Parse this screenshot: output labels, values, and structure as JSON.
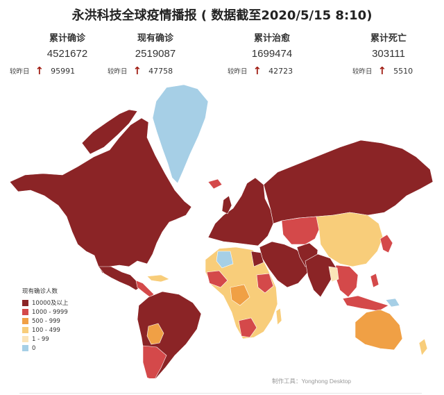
{
  "title": "永洪科技全球疫情播报 ( 数据截至2020/5/15 8:10)",
  "stats": [
    {
      "label": "累计确诊",
      "value": "4521672",
      "compare": "较昨日",
      "delta": "95991"
    },
    {
      "label": "现有确诊",
      "value": "2519087",
      "compare": "较昨日",
      "delta": "47758"
    },
    {
      "label": "累计治愈",
      "value": "1699474",
      "compare": "较昨日",
      "delta": "42723"
    },
    {
      "label": "累计死亡",
      "value": "303111",
      "compare": "较昨日",
      "delta": "5510"
    }
  ],
  "icons": {
    "increase": "up-arrow-icon"
  },
  "legend": {
    "title": "现有确诊人数",
    "items": [
      {
        "label": "10000及以上",
        "color": "#8b2426"
      },
      {
        "label": "1000 - 9999",
        "color": "#d4494a"
      },
      {
        "label": "500 - 999",
        "color": "#f0a045"
      },
      {
        "label": "100 - 499",
        "color": "#f8cd7a"
      },
      {
        "label": "1 - 99",
        "color": "#fbe4b8"
      },
      {
        "label": "0",
        "color": "#a6cfe6"
      }
    ]
  },
  "credit": "制作工具：Yonghong Desktop"
}
